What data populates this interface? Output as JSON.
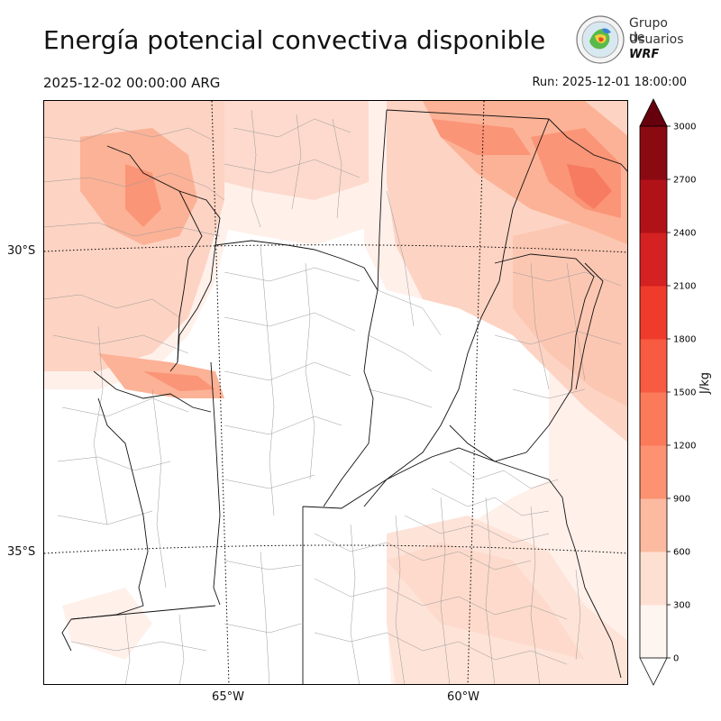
{
  "header": {
    "title": "Energía potencial convectiva disponible",
    "valid_time": "2025-12-02 00:00:00 ARG",
    "run_time": "Run: 2025-12-01 18:00:00"
  },
  "logo": {
    "line1": "Grupo de",
    "line2": "Usuarios",
    "line3": "WRF"
  },
  "map": {
    "lat_labels": [
      "30°S",
      "35°S"
    ],
    "lon_labels": [
      "65°W",
      "60°W"
    ]
  },
  "colorbar": {
    "unit": "J/kg",
    "ticks": [
      "0",
      "300",
      "600",
      "900",
      "1200",
      "1500",
      "1800",
      "2100",
      "2400",
      "2700",
      "3000"
    ],
    "colors": [
      "#fff5f0",
      "#fee0d2",
      "#fcbba1",
      "#fc9272",
      "#fb7a5a",
      "#f75b41",
      "#ef3b2c",
      "#d42121",
      "#b11218",
      "#8a0a12"
    ],
    "over_color": "#67000d",
    "under_color": "#ffffff"
  }
}
